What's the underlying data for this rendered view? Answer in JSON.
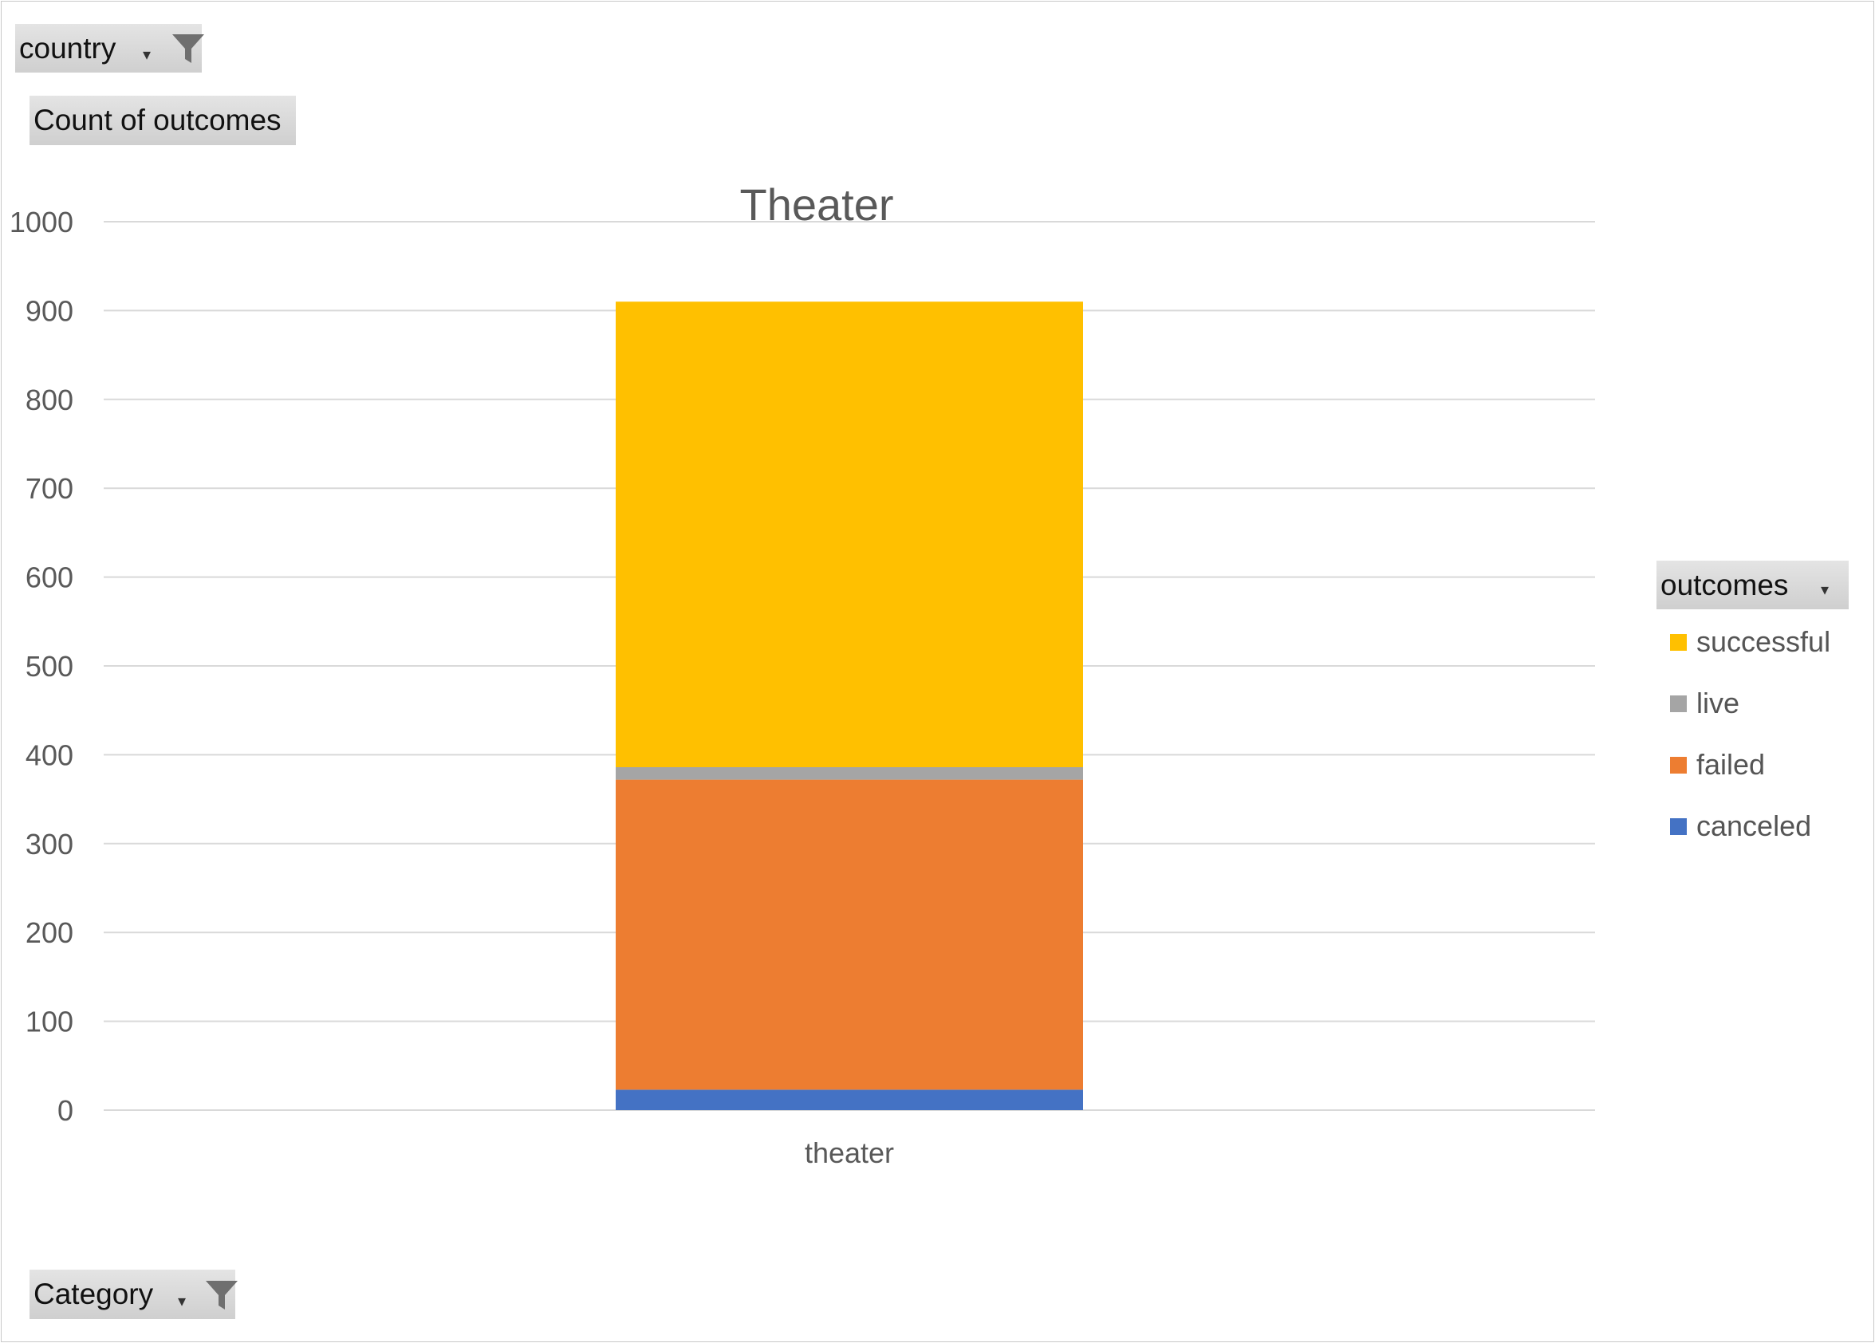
{
  "filters": {
    "country_label": "country",
    "value_label": "Count of outcomes",
    "category_label": "Category",
    "legend_field_label": "outcomes"
  },
  "icons": {
    "filter": "funnel-icon",
    "dropdown": "dropdown-arrow-icon"
  },
  "chart_data": {
    "type": "bar",
    "stacked": true,
    "title": "Theater",
    "categories": [
      "theater"
    ],
    "series": [
      {
        "name": "canceled",
        "values": [
          23
        ],
        "color": "#4472C4"
      },
      {
        "name": "failed",
        "values": [
          349
        ],
        "color": "#ED7D31"
      },
      {
        "name": "live",
        "values": [
          14
        ],
        "color": "#A5A5A5"
      },
      {
        "name": "successful",
        "values": [
          524
        ],
        "color": "#FFC000"
      }
    ],
    "ylim": [
      0,
      1000
    ],
    "yticks": [
      "0",
      "100",
      "200",
      "300",
      "400",
      "500",
      "600",
      "700",
      "800",
      "900",
      "1000"
    ],
    "grid": true,
    "legend_position": "right",
    "legend_order": [
      "successful",
      "live",
      "failed",
      "canceled"
    ]
  }
}
